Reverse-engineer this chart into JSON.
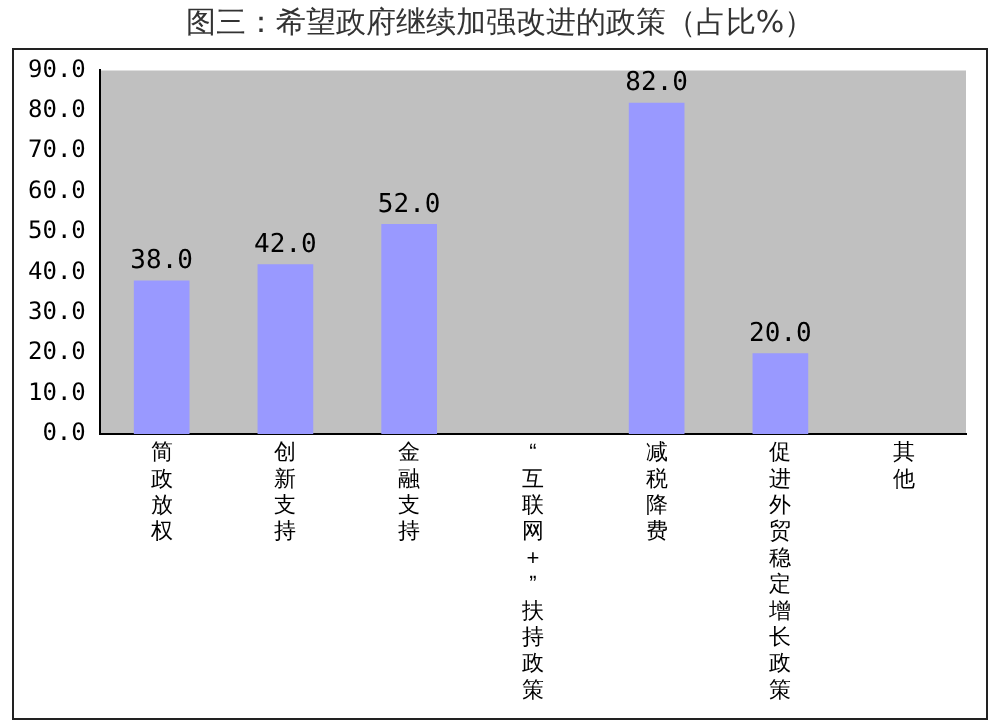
{
  "chart_data": {
    "type": "bar",
    "title": "图三：希望政府继续加强改进的政策（占比%）",
    "categories": [
      "简政放权",
      "创新支持",
      "金融支持",
      "“互联网+”扶持政策",
      "减税降费",
      "促进外贸稳定增长政策",
      "其他"
    ],
    "values": [
      38.0,
      42.0,
      52.0,
      null,
      82.0,
      20.0,
      null
    ],
    "value_labels": [
      "38.0",
      "42.0",
      "52.0",
      null,
      "82.0",
      "20.0",
      null
    ],
    "color": "#9999ff",
    "ylim": [
      0,
      90
    ],
    "yticks": [
      {
        "value": 0,
        "label": "0.0"
      },
      {
        "value": 10,
        "label": "10.0"
      },
      {
        "value": 20,
        "label": "20.0"
      },
      {
        "value": 30,
        "label": "30.0"
      },
      {
        "value": 40,
        "label": "40.0"
      },
      {
        "value": 50,
        "label": "50.0"
      },
      {
        "value": 60,
        "label": "60.0"
      },
      {
        "value": 70,
        "label": "70.0"
      },
      {
        "value": 80,
        "label": "80.0"
      },
      {
        "value": 90,
        "label": "90.0"
      }
    ],
    "grid": false,
    "legend": false
  }
}
